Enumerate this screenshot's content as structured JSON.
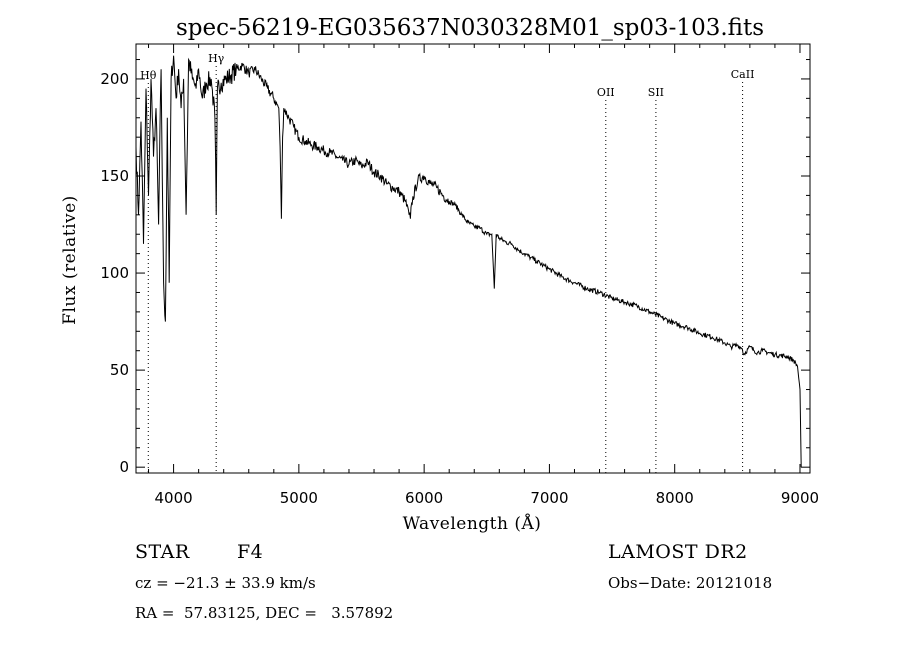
{
  "chart_data": {
    "type": "line",
    "title": "spec-56219-EG035637N030328M01_sp03-103.fits",
    "xlabel": "Wavelength (Å)",
    "ylabel": "Flux (relative)",
    "xlim": [
      3700,
      9080
    ],
    "ylim": [
      -3,
      218
    ],
    "x_ticks": [
      4000,
      5000,
      6000,
      7000,
      8000,
      9000
    ],
    "y_ticks": [
      0,
      50,
      100,
      150,
      200
    ],
    "series": [
      {
        "name": "flux",
        "x": [
          3700,
          3720,
          3740,
          3760,
          3780,
          3800,
          3820,
          3840,
          3860,
          3880,
          3900,
          3920,
          3935,
          3950,
          3965,
          3980,
          4000,
          4020,
          4040,
          4060,
          4080,
          4100,
          4120,
          4150,
          4180,
          4200,
          4230,
          4260,
          4300,
          4330,
          4340,
          4350,
          4380,
          4420,
          4460,
          4500,
          4550,
          4600,
          4650,
          4700,
          4750,
          4800,
          4840,
          4850,
          4861,
          4870,
          4880,
          4920,
          4960,
          5000,
          5050,
          5100,
          5150,
          5200,
          5250,
          5300,
          5350,
          5400,
          5450,
          5500,
          5550,
          5600,
          5650,
          5700,
          5750,
          5800,
          5850,
          5880,
          5890,
          5900,
          5950,
          6000,
          6050,
          6100,
          6150,
          6200,
          6250,
          6300,
          6350,
          6400,
          6450,
          6500,
          6540,
          6560,
          6575,
          6600,
          6650,
          6700,
          6750,
          6800,
          6850,
          6900,
          6950,
          7000,
          7100,
          7200,
          7300,
          7400,
          7500,
          7600,
          7700,
          7800,
          7900,
          8000,
          8100,
          8200,
          8300,
          8400,
          8450,
          8500,
          8540,
          8550,
          8600,
          8660,
          8700,
          8800,
          8900,
          8950,
          8980,
          9000,
          9005,
          9010
        ],
        "y": [
          165,
          130,
          178,
          115,
          195,
          140,
          200,
          160,
          185,
          125,
          205,
          95,
          75,
          180,
          95,
          200,
          212,
          190,
          205,
          185,
          200,
          130,
          210,
          200,
          195,
          205,
          190,
          198,
          200,
          180,
          130,
          195,
          198,
          200,
          202,
          205,
          207,
          203,
          205,
          200,
          195,
          190,
          185,
          165,
          128,
          170,
          185,
          180,
          175,
          170,
          168,
          166,
          165,
          163,
          162,
          160,
          158,
          156,
          158,
          155,
          157,
          152,
          150,
          146,
          144,
          142,
          137,
          130,
          128,
          136,
          148,
          150,
          146,
          144,
          140,
          137,
          135,
          130,
          126,
          124,
          123,
          120,
          120,
          92,
          120,
          118,
          116,
          115,
          112,
          110,
          108,
          106,
          104,
          102,
          98,
          95,
          92,
          90,
          87,
          85,
          83,
          80,
          77,
          74,
          72,
          69,
          67,
          64,
          62,
          63,
          61,
          58,
          62,
          59,
          60,
          58,
          57,
          55,
          52,
          40,
          20,
          0
        ]
      }
    ],
    "spectral_lines": [
      {
        "label": "Hθ",
        "x": 3798
      },
      {
        "label": "Hγ",
        "x": 4340
      },
      {
        "label": "OII",
        "x": 7450
      },
      {
        "label": "SII",
        "x": 7850
      },
      {
        "label": "CaII",
        "x": 8542
      }
    ]
  },
  "footer": {
    "object_type": "STAR",
    "subclass": "F4",
    "cz": "cz = −21.3 ± 33.9 km/s",
    "coords": "RA =  57.83125, DEC =   3.57892",
    "survey": "LAMOST DR2",
    "obs_date": "Obs−Date: 20121018"
  }
}
